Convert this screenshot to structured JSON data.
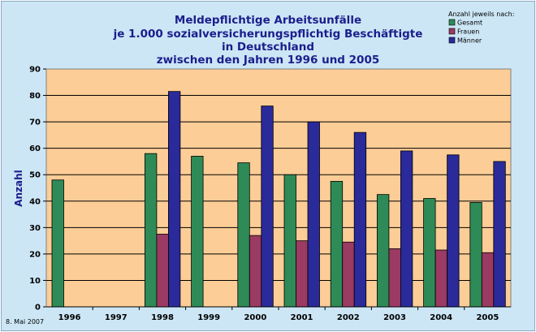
{
  "chart_data": {
    "type": "bar",
    "title": [
      "Meldepflichtige Arbeitsunfälle",
      "je 1.000 sozialversicherungspflichtig Beschäftigte",
      "in Deutschland",
      "zwischen den Jahren 1996 und 2005"
    ],
    "ylabel": "Anzahl",
    "xlabel": "",
    "ylim": [
      0,
      90
    ],
    "yticks": [
      0,
      10,
      20,
      30,
      40,
      50,
      60,
      70,
      80,
      90
    ],
    "categories": [
      "1996",
      "1997",
      "1998",
      "1999",
      "2000",
      "2001",
      "2002",
      "2003",
      "2004",
      "2005"
    ],
    "legend_title": "Anzahl jeweils nach:",
    "legend_position": "top-right",
    "grid": true,
    "series": [
      {
        "name": "Gesamt",
        "color": "#2e8b57",
        "values": [
          48,
          null,
          58,
          57,
          54.5,
          50,
          47.5,
          42.5,
          41,
          39.5
        ]
      },
      {
        "name": "Frauen",
        "color": "#9b3a62",
        "values": [
          null,
          null,
          27.5,
          null,
          27,
          25,
          24.5,
          22,
          21.5,
          20.5
        ]
      },
      {
        "name": "Männer",
        "color": "#2a2a9a",
        "values": [
          null,
          null,
          81.5,
          null,
          76,
          70,
          66,
          59,
          57.5,
          55
        ]
      }
    ]
  },
  "footer": {
    "date": "8. Mai 2007"
  }
}
